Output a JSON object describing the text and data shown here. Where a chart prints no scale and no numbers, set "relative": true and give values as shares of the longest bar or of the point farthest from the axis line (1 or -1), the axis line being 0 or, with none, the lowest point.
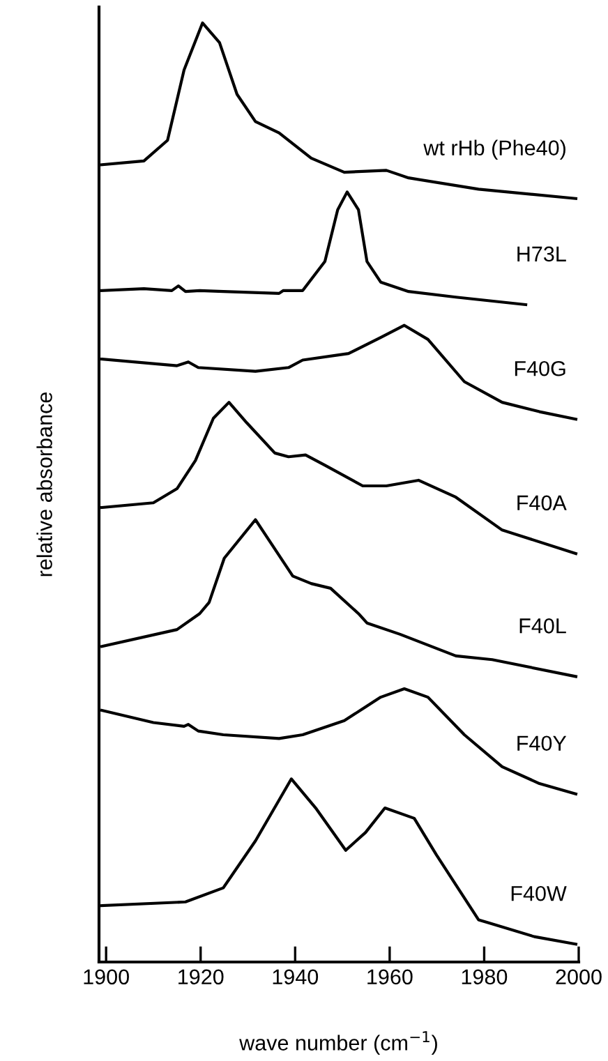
{
  "chart_data": {
    "type": "line",
    "relative": true,
    "xlabel": "wave number (cm$^{−1}$)",
    "ylabel": "relative absorbance",
    "xlim": [
      1898.5,
      2000
    ],
    "xticks": [
      1900,
      1920,
      1940,
      1960,
      1980,
      2000
    ],
    "tick_labels": "x",
    "grid": false,
    "legend": false,
    "marker": "none",
    "line_style": "solid",
    "series": [
      {
        "name": "wt rHb (Phe40)",
        "color": "#000000",
        "x": [
          1899.1,
          1908,
          1913,
          1916.5,
          1920.4,
          1924,
          1927.7,
          1931.6,
          1936.6,
          1943.4,
          1950.4,
          1959.3,
          1964,
          1978.8,
          1999.4
        ],
        "values": [
          0.849,
          0.853,
          0.875,
          0.95,
          1,
          0.979,
          0.924,
          0.895,
          0.883,
          0.856,
          0.841,
          0.843,
          0.835,
          0.823,
          0.813
        ]
      },
      {
        "name": "H73L",
        "color": "#000000",
        "x": [
          1899.1,
          1908,
          1913.9,
          1915.3,
          1916.8,
          1919.8,
          1924.8,
          1936.6,
          1937.5,
          1941.6,
          1946.3,
          1949,
          1951,
          1953.4,
          1955.2,
          1958.1,
          1964,
          1974,
          1988.8
        ],
        "values": [
          0.715,
          0.717,
          0.715,
          0.72,
          0.714,
          0.715,
          0.714,
          0.712,
          0.715,
          0.715,
          0.746,
          0.801,
          0.82,
          0.801,
          0.746,
          0.724,
          0.714,
          0.708,
          0.7
        ]
      },
      {
        "name": "F40G",
        "color": "#000000",
        "x": [
          1899.1,
          1915,
          1917.4,
          1919.5,
          1931.6,
          1938.6,
          1941.6,
          1951.3,
          1958.1,
          1963.1,
          1968.1,
          1975.8,
          1983.8,
          1991.7,
          1999.4
        ],
        "values": [
          0.642,
          0.635,
          0.639,
          0.633,
          0.629,
          0.633,
          0.641,
          0.648,
          0.665,
          0.678,
          0.663,
          0.618,
          0.596,
          0.586,
          0.578
        ]
      },
      {
        "name": "F40A",
        "color": "#000000",
        "x": [
          1899.1,
          1910,
          1915,
          1918.9,
          1922.7,
          1926,
          1929.8,
          1935.7,
          1938.6,
          1942.2,
          1946.3,
          1954.3,
          1959.3,
          1966.1,
          1974,
          1983.8,
          1999.4
        ],
        "values": [
          0.484,
          0.489,
          0.504,
          0.534,
          0.579,
          0.596,
          0.574,
          0.542,
          0.538,
          0.54,
          0.529,
          0.507,
          0.507,
          0.513,
          0.495,
          0.46,
          0.435
        ]
      },
      {
        "name": "F40L",
        "color": "#000000",
        "x": [
          1899.1,
          1915,
          1919.8,
          1921.8,
          1925,
          1931.6,
          1939.5,
          1943.4,
          1947.5,
          1953.4,
          1955.2,
          1962.2,
          1974,
          1981.7,
          1999.4
        ],
        "values": [
          0.336,
          0.354,
          0.371,
          0.383,
          0.43,
          0.471,
          0.411,
          0.403,
          0.398,
          0.371,
          0.361,
          0.349,
          0.326,
          0.322,
          0.304
        ]
      },
      {
        "name": "F40Y",
        "color": "#000000",
        "x": [
          1899.1,
          1910,
          1916.5,
          1917.4,
          1919.5,
          1924.8,
          1936.6,
          1941.6,
          1950.4,
          1958.1,
          1963.1,
          1968.1,
          1975.8,
          1983.8,
          1991.7,
          1999.4
        ],
        "values": [
          0.268,
          0.255,
          0.251,
          0.253,
          0.246,
          0.242,
          0.238,
          0.242,
          0.257,
          0.282,
          0.291,
          0.282,
          0.242,
          0.208,
          0.19,
          0.179
        ]
      },
      {
        "name": "F40W",
        "color": "#000000",
        "x": [
          1899.1,
          1916.8,
          1924.8,
          1931.6,
          1939.2,
          1944.5,
          1950.7,
          1954.9,
          1959,
          1965.2,
          1969.9,
          1978.8,
          1980.8,
          1990.6,
          1999.4
        ],
        "values": [
          0.06,
          0.064,
          0.079,
          0.129,
          0.195,
          0.163,
          0.119,
          0.138,
          0.164,
          0.153,
          0.114,
          0.045,
          0.042,
          0.027,
          0.019
        ]
      }
    ]
  }
}
